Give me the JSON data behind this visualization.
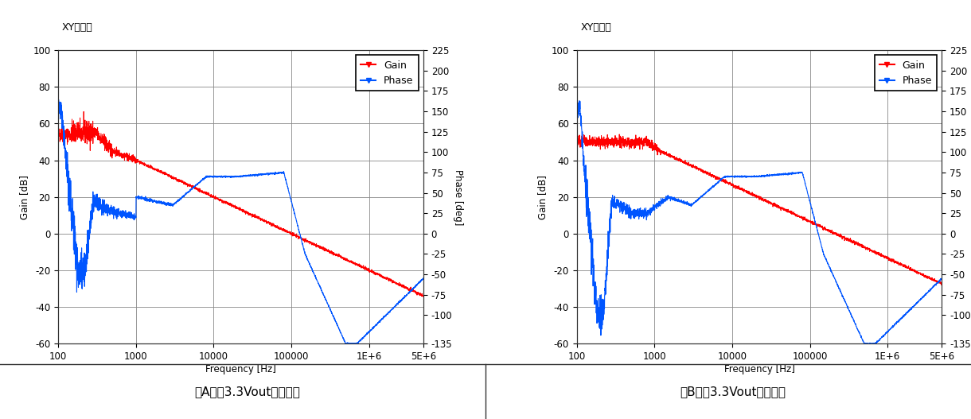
{
  "title_left": "XYグラフ",
  "title_right": "XYグラフ",
  "xlabel": "Frequency [Hz]",
  "ylabel_left": "Gain [dB]",
  "ylabel_right": "Phase [deg]",
  "caption_left": "（A）　3.3Voutオフ設定",
  "caption_right": "（B）　3.3Voutオン設定",
  "gain_color": "#FF0000",
  "phase_color": "#0055FF",
  "background_color": "#FFFFFF",
  "plot_bg_color": "#FFFFFF",
  "grid_color": "#888888",
  "ylim_gain": [
    -60,
    100
  ],
  "ylim_phase": [
    -135,
    225
  ],
  "yticks_gain": [
    -60,
    -40,
    -20,
    0,
    20,
    40,
    60,
    80,
    100
  ],
  "yticks_phase": [
    -135,
    -100,
    -75,
    -50,
    -25,
    0,
    25,
    50,
    75,
    100,
    125,
    150,
    175,
    200,
    225
  ],
  "xlim": [
    100,
    5000000
  ],
  "xticks": [
    100,
    1000,
    10000,
    100000,
    1000000,
    5000000
  ],
  "xticklabels": [
    "100",
    "1000",
    "10000",
    "100000",
    "1E+6",
    "5E+6"
  ],
  "legend_items": [
    "Gain",
    "Phase"
  ],
  "figsize": [
    12.2,
    5.27
  ],
  "dpi": 100
}
